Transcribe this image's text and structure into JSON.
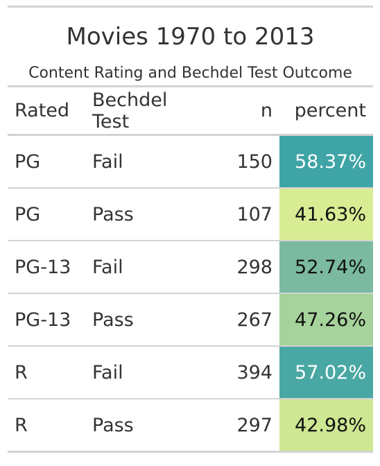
{
  "table": {
    "title": "Movies 1970 to 2013",
    "subtitle": "Content Rating and Bechdel Test Outcome",
    "columns": [
      "Rated",
      "Bechdel Test",
      "n",
      "percent"
    ]
  },
  "chart_data": {
    "type": "table",
    "title": "Movies 1970 to 2013",
    "subtitle": "Content Rating and Bechdel Test Outcome",
    "columns": [
      "Rated",
      "Bechdel Test",
      "n",
      "percent"
    ],
    "rows": [
      {
        "rated": "PG",
        "test": "Fail",
        "n": "150",
        "percent": "58.37%",
        "value": 58.37,
        "bg": "#3fa4a6",
        "fg": "#ffffff"
      },
      {
        "rated": "PG",
        "test": "Pass",
        "n": "107",
        "percent": "41.63%",
        "value": 41.63,
        "bg": "#d8ec94",
        "fg": "#111111"
      },
      {
        "rated": "PG-13",
        "test": "Fail",
        "n": "298",
        "percent": "52.74%",
        "value": 52.74,
        "bg": "#7bbaa0",
        "fg": "#111111"
      },
      {
        "rated": "PG-13",
        "test": "Pass",
        "n": "267",
        "percent": "47.26%",
        "value": 47.26,
        "bg": "#a6d39b",
        "fg": "#111111"
      },
      {
        "rated": "R",
        "test": "Fail",
        "n": "394",
        "percent": "57.02%",
        "value": 57.02,
        "bg": "#4aa8a4",
        "fg": "#ffffff"
      },
      {
        "rated": "R",
        "test": "Pass",
        "n": "297",
        "percent": "42.98%",
        "value": 42.98,
        "bg": "#cde792",
        "fg": "#111111"
      }
    ]
  }
}
